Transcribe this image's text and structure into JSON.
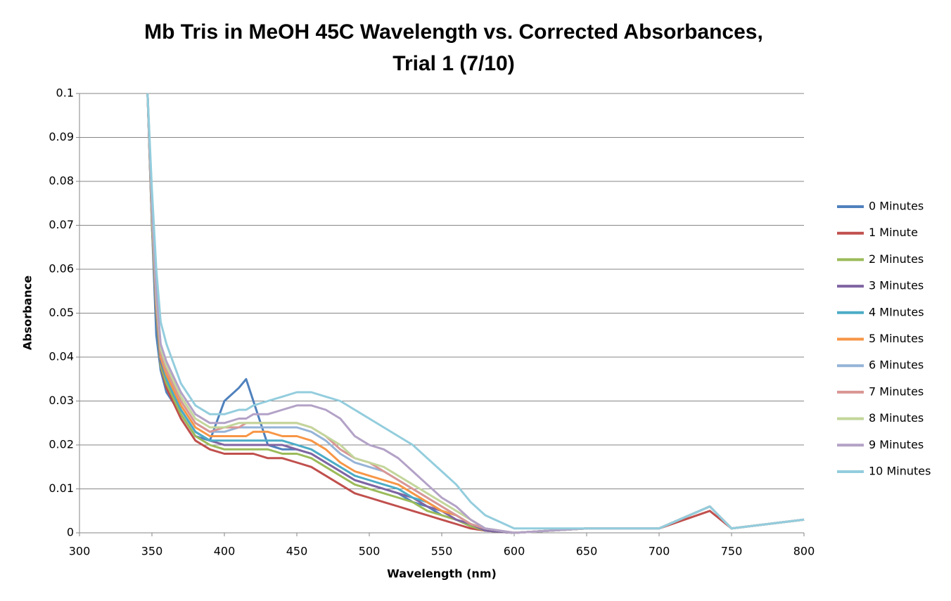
{
  "chart_data": {
    "type": "line",
    "title": [
      "Mb Tris in MeOH 45C Wavelength vs. Corrected Absorbances,",
      "Trial 1 (7/10)"
    ],
    "x_label": "Wavelength (nm)",
    "y_label": "Absorbance",
    "xlim": [
      300,
      800
    ],
    "xticks": [
      300,
      350,
      400,
      450,
      500,
      550,
      600,
      650,
      700,
      750,
      800
    ],
    "ylim": [
      0,
      0.1
    ],
    "yticks": [
      0,
      0.01,
      0.02,
      0.03,
      0.04,
      0.05,
      0.06,
      0.07,
      0.08,
      0.09,
      0.1
    ],
    "grid": true,
    "legend": "right",
    "x": [
      347,
      350,
      353,
      356,
      360,
      370,
      380,
      390,
      400,
      410,
      415,
      420,
      430,
      440,
      450,
      460,
      470,
      480,
      490,
      500,
      510,
      520,
      530,
      540,
      550,
      560,
      570,
      580,
      600,
      650,
      700,
      735,
      750,
      800
    ],
    "series": [
      {
        "name": "0 Minutes",
        "color": "#4F81BD",
        "values": [
          0.1,
          0.07,
          0.045,
          0.037,
          0.032,
          0.027,
          0.022,
          0.021,
          0.03,
          0.033,
          0.035,
          0.03,
          0.02,
          0.019,
          0.019,
          0.018,
          0.016,
          0.014,
          0.012,
          0.011,
          0.01,
          0.009,
          0.007,
          0.006,
          0.004,
          0.003,
          0.0015,
          0.0005,
          0,
          0.001,
          0.001,
          0.006,
          0.001,
          0.003
        ]
      },
      {
        "name": "1 Minute",
        "color": "#C0504D",
        "values": [
          0.1,
          0.07,
          0.05,
          0.038,
          0.033,
          0.026,
          0.021,
          0.019,
          0.018,
          0.018,
          0.018,
          0.018,
          0.017,
          0.017,
          0.016,
          0.015,
          0.013,
          0.011,
          0.009,
          0.008,
          0.007,
          0.006,
          0.005,
          0.004,
          0.003,
          0.002,
          0.001,
          0.0005,
          0,
          0.001,
          0.001,
          0.005,
          0.001,
          0.003
        ]
      },
      {
        "name": "2 Minutes",
        "color": "#9BBB59",
        "values": [
          0.1,
          0.07,
          0.05,
          0.038,
          0.034,
          0.027,
          0.022,
          0.02,
          0.019,
          0.019,
          0.019,
          0.019,
          0.019,
          0.018,
          0.018,
          0.017,
          0.015,
          0.013,
          0.011,
          0.01,
          0.009,
          0.008,
          0.007,
          0.005,
          0.004,
          0.003,
          0.0015,
          0.0005,
          0,
          0.001,
          0.001,
          0.006,
          0.001,
          0.003
        ]
      },
      {
        "name": "3 Minutes",
        "color": "#8064A2",
        "values": [
          0.1,
          0.071,
          0.051,
          0.039,
          0.035,
          0.028,
          0.023,
          0.021,
          0.02,
          0.02,
          0.02,
          0.02,
          0.02,
          0.02,
          0.019,
          0.018,
          0.016,
          0.014,
          0.012,
          0.011,
          0.01,
          0.009,
          0.008,
          0.006,
          0.005,
          0.003,
          0.002,
          0.0005,
          0,
          0.001,
          0.001,
          0.006,
          0.001,
          0.003
        ]
      },
      {
        "name": "4 MInutes",
        "color": "#4BACC6",
        "values": [
          0.1,
          0.071,
          0.052,
          0.04,
          0.035,
          0.028,
          0.023,
          0.021,
          0.021,
          0.021,
          0.021,
          0.021,
          0.021,
          0.021,
          0.02,
          0.019,
          0.017,
          0.015,
          0.013,
          0.012,
          0.011,
          0.01,
          0.008,
          0.007,
          0.005,
          0.004,
          0.002,
          0.001,
          0,
          0.001,
          0.001,
          0.006,
          0.001,
          0.003
        ]
      },
      {
        "name": "5 Minutes",
        "color": "#F79646",
        "values": [
          0.1,
          0.072,
          0.052,
          0.04,
          0.036,
          0.029,
          0.024,
          0.022,
          0.022,
          0.022,
          0.022,
          0.023,
          0.023,
          0.022,
          0.022,
          0.021,
          0.019,
          0.016,
          0.014,
          0.013,
          0.012,
          0.011,
          0.009,
          0.007,
          0.005,
          0.004,
          0.002,
          0.001,
          0,
          0.001,
          0.001,
          0.006,
          0.001,
          0.003
        ]
      },
      {
        "name": "6 Minutes",
        "color": "#95B3D7",
        "values": [
          0.1,
          0.073,
          0.053,
          0.041,
          0.037,
          0.03,
          0.025,
          0.023,
          0.023,
          0.024,
          0.024,
          0.024,
          0.024,
          0.024,
          0.024,
          0.023,
          0.021,
          0.018,
          0.016,
          0.015,
          0.014,
          0.012,
          0.01,
          0.008,
          0.006,
          0.004,
          0.002,
          0.001,
          0,
          0.001,
          0.001,
          0.006,
          0.001,
          0.003
        ]
      },
      {
        "name": "7 Minutes",
        "color": "#D99694",
        "values": [
          0.1,
          0.073,
          0.053,
          0.041,
          0.037,
          0.03,
          0.025,
          0.023,
          0.024,
          0.024,
          0.025,
          0.025,
          0.025,
          0.025,
          0.025,
          0.024,
          0.022,
          0.019,
          0.017,
          0.016,
          0.014,
          0.012,
          0.01,
          0.008,
          0.006,
          0.004,
          0.002,
          0.001,
          0,
          0.001,
          0.001,
          0.006,
          0.001,
          0.003
        ]
      },
      {
        "name": "8 Minutes",
        "color": "#C3D69B",
        "values": [
          0.1,
          0.074,
          0.054,
          0.042,
          0.038,
          0.031,
          0.026,
          0.024,
          0.024,
          0.025,
          0.025,
          0.025,
          0.025,
          0.025,
          0.025,
          0.024,
          0.022,
          0.02,
          0.017,
          0.016,
          0.015,
          0.013,
          0.011,
          0.009,
          0.007,
          0.005,
          0.003,
          0.001,
          0,
          0.001,
          0.001,
          0.006,
          0.001,
          0.003
        ]
      },
      {
        "name": "9 Minutes",
        "color": "#B3A2C7",
        "values": [
          0.1,
          0.075,
          0.055,
          0.043,
          0.039,
          0.032,
          0.027,
          0.025,
          0.025,
          0.026,
          0.026,
          0.027,
          0.027,
          0.028,
          0.029,
          0.029,
          0.028,
          0.026,
          0.022,
          0.02,
          0.019,
          0.017,
          0.014,
          0.011,
          0.008,
          0.006,
          0.003,
          0.001,
          0,
          0.001,
          0.001,
          0.006,
          0.001,
          0.003
        ]
      },
      {
        "name": "10 Minutes",
        "color": "#93CDDD",
        "values": [
          0.1,
          0.078,
          0.06,
          0.048,
          0.043,
          0.034,
          0.029,
          0.027,
          0.027,
          0.028,
          0.028,
          0.029,
          0.03,
          0.031,
          0.032,
          0.032,
          0.031,
          0.03,
          0.028,
          0.026,
          0.024,
          0.022,
          0.02,
          0.017,
          0.014,
          0.011,
          0.007,
          0.004,
          0.001,
          0.001,
          0.001,
          0.006,
          0.001,
          0.003
        ]
      }
    ]
  }
}
